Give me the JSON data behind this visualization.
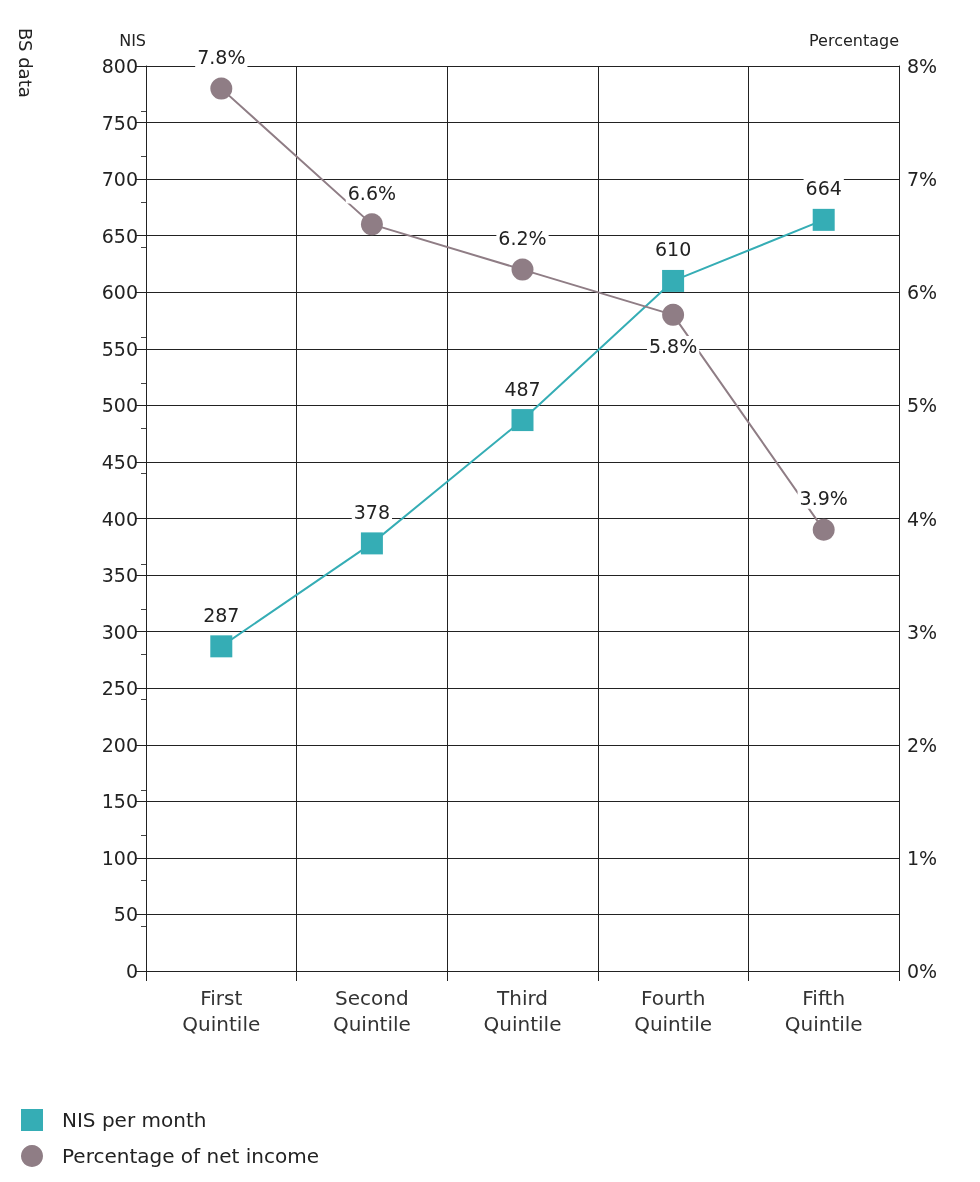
{
  "chart_data": {
    "type": "line",
    "ylabel": "NIS",
    "y2label": "Percentage",
    "categories": [
      "First\nQuintile",
      "Second\nQuintile",
      "Third\nQuintile",
      "Fourth\nQuintile",
      "Fifth\nQuintile"
    ],
    "series": [
      {
        "name": "NIS per month",
        "color": "#35adb5",
        "marker": "square",
        "values": [
          287,
          378,
          487,
          610,
          664
        ],
        "value_labels": [
          "287",
          "378",
          "487",
          "610",
          "664"
        ]
      },
      {
        "name": "Percentage of net income",
        "color": "#8f7d85",
        "marker": "circle",
        "axis": "y2",
        "values": [
          7.8,
          6.6,
          6.2,
          5.8,
          3.9
        ],
        "value_labels": [
          "7.8%",
          "6.6%",
          "6.2%",
          "5.8%",
          "3.9%"
        ]
      }
    ],
    "ylim": [
      0,
      800
    ],
    "yticks": [
      0,
      50,
      100,
      150,
      200,
      250,
      300,
      350,
      400,
      450,
      500,
      550,
      600,
      650,
      700,
      750,
      800
    ],
    "y2lim": [
      0,
      8
    ],
    "y2ticks": [
      {
        "value": 0,
        "label": "0%"
      },
      {
        "value": 1,
        "label": "1%"
      },
      {
        "value": 2,
        "label": "2%"
      },
      {
        "value": 3,
        "label": "3%"
      },
      {
        "value": 4,
        "label": "4%"
      },
      {
        "value": 5,
        "label": "5%"
      },
      {
        "value": 6,
        "label": "6%"
      },
      {
        "value": 7,
        "label": "7%"
      },
      {
        "value": 8,
        "label": "8%"
      }
    ],
    "grid": true,
    "legend": "bottom left",
    "line_style": "solid",
    "annotations": [
      "BS data"
    ]
  }
}
